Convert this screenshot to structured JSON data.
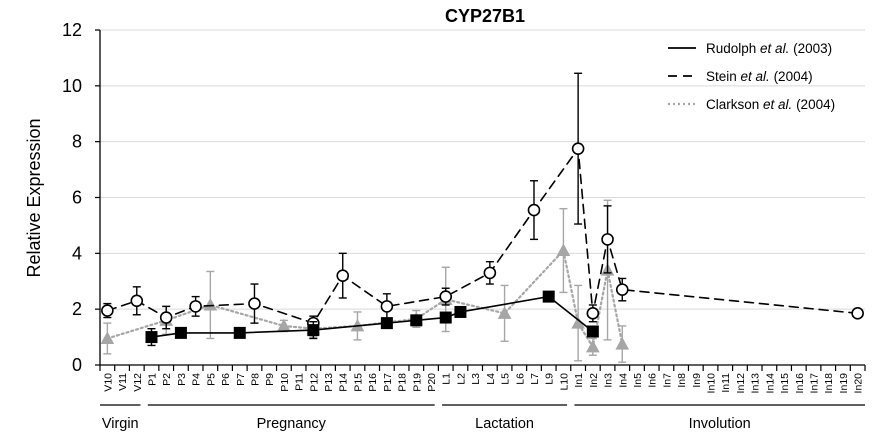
{
  "chart_data": {
    "type": "line",
    "title": "CYP27B1",
    "xlabel": "",
    "ylabel": "Relative Expression",
    "ylim": [
      0,
      12
    ],
    "yticks": [
      "0",
      "2",
      "4",
      "6",
      "8",
      "10",
      "12"
    ],
    "grid": true,
    "legend_position": "top-right",
    "categories": [
      "V10",
      "V11",
      "V12",
      "P1",
      "P2",
      "P3",
      "P4",
      "P5",
      "P6",
      "P7",
      "P8",
      "P9",
      "P10",
      "P11",
      "P12",
      "P13",
      "P14",
      "P15",
      "P16",
      "P17",
      "P18",
      "P19",
      "P20",
      "L1",
      "L2",
      "L3",
      "L4",
      "L5",
      "L6",
      "L7",
      "L9",
      "L10",
      "In1",
      "In2",
      "In3",
      "In4",
      "In5",
      "In6",
      "In7",
      "In8",
      "In9",
      "In10",
      "In11",
      "In12",
      "In13",
      "In14",
      "In15",
      "In16",
      "In17",
      "In18",
      "In19",
      "In20"
    ],
    "groups": [
      {
        "label": "Virgin",
        "from": "V10",
        "to": "V12"
      },
      {
        "label": "Pregnancy",
        "from": "P1",
        "to": "P20"
      },
      {
        "label": "Lactation",
        "from": "L1",
        "to": "L10"
      },
      {
        "label": "Involution",
        "from": "In1",
        "to": "In20"
      }
    ],
    "series": [
      {
        "name": "Rudolph et al. (2003)",
        "legend_prefix": "Rudolph ",
        "legend_italic": "et al.",
        "legend_suffix": " (2003)",
        "style": "solid",
        "color": "#000000",
        "marker": "square-filled",
        "points": [
          {
            "x": "P1",
            "y": 1.0,
            "err": 0.3
          },
          {
            "x": "P3",
            "y": 1.15
          },
          {
            "x": "P7",
            "y": 1.15
          },
          {
            "x": "P12",
            "y": 1.25,
            "err": 0.3
          },
          {
            "x": "P17",
            "y": 1.5
          },
          {
            "x": "P19",
            "y": 1.6
          },
          {
            "x": "L1",
            "y": 1.7
          },
          {
            "x": "L2",
            "y": 1.9
          },
          {
            "x": "L9",
            "y": 2.45
          },
          {
            "x": "In2",
            "y": 1.2
          }
        ]
      },
      {
        "name": "Stein et al. (2004)",
        "legend_prefix": "Stein ",
        "legend_italic": "et al.",
        "legend_suffix": " (2004)",
        "style": "dashed",
        "color": "#000000",
        "marker": "circle-open",
        "points": [
          {
            "x": "V10",
            "y": 1.95,
            "err": 0.25
          },
          {
            "x": "V12",
            "y": 2.3,
            "err": 0.5
          },
          {
            "x": "P2",
            "y": 1.7,
            "err": 0.4
          },
          {
            "x": "P4",
            "y": 2.1,
            "err": 0.35
          },
          {
            "x": "P8",
            "y": 2.2,
            "err": 0.7
          },
          {
            "x": "P12",
            "y": 1.5,
            "err": 0.25
          },
          {
            "x": "P14",
            "y": 3.2,
            "err": 0.8
          },
          {
            "x": "P17",
            "y": 2.1,
            "err": 0.45
          },
          {
            "x": "L1",
            "y": 2.45,
            "err": 0.3
          },
          {
            "x": "L4",
            "y": 3.3,
            "err": 0.4
          },
          {
            "x": "L7",
            "y": 5.55,
            "err": 1.05
          },
          {
            "x": "In1",
            "y": 7.75,
            "err": 2.7
          },
          {
            "x": "In2",
            "y": 1.85,
            "err": 0.3
          },
          {
            "x": "In3",
            "y": 4.5,
            "err": 1.2
          },
          {
            "x": "In4",
            "y": 2.7,
            "err": 0.4
          },
          {
            "x": "In20",
            "y": 1.85
          }
        ]
      },
      {
        "name": "Clarkson et al. (2004)",
        "legend_prefix": "Clarkson ",
        "legend_italic": "et al.",
        "legend_suffix": " (2004)",
        "style": "dotted",
        "color": "#a6a6a6",
        "marker": "triangle-filled",
        "points": [
          {
            "x": "V10",
            "y": 0.95,
            "err": 0.55
          },
          {
            "x": "P2",
            "y": 1.6,
            "err": 0.5
          },
          {
            "x": "P5",
            "y": 2.15,
            "err": 1.2
          },
          {
            "x": "P10",
            "y": 1.4,
            "err": 0.2
          },
          {
            "x": "P12",
            "y": 1.3,
            "err": 0.3
          },
          {
            "x": "P15",
            "y": 1.4,
            "err": 0.5
          },
          {
            "x": "P19",
            "y": 1.65,
            "err": 0.3
          },
          {
            "x": "L1",
            "y": 2.35,
            "err": 1.15
          },
          {
            "x": "L5",
            "y": 1.85,
            "err": 1.0
          },
          {
            "x": "L10",
            "y": 4.1,
            "err": 1.5
          },
          {
            "x": "In1",
            "y": 1.5,
            "err": 1.35
          },
          {
            "x": "In2",
            "y": 0.65,
            "err": 0.3
          },
          {
            "x": "In3",
            "y": 3.4,
            "err": 2.5
          },
          {
            "x": "In4",
            "y": 0.75,
            "err": 0.65
          }
        ]
      }
    ]
  }
}
